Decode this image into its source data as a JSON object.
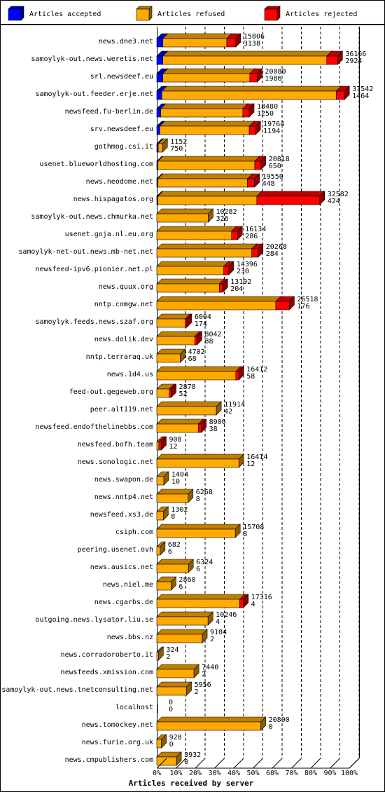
{
  "colors": {
    "accepted": "#0000ff",
    "refused": "#ffaa00",
    "rejected": "#ff0000",
    "background": "#ffffff",
    "grid": "#000000"
  },
  "chart_data": {
    "type": "bar",
    "orientation": "horizontal",
    "stacked": true,
    "three_d": true,
    "grid": true,
    "legend_position": "top",
    "xlabel": "Articles received by server",
    "ylabel": "",
    "title": "",
    "xlim": [
      0,
      100
    ],
    "x_unit": "%",
    "x_ticks": [
      "0%",
      "10%",
      "20%",
      "30%",
      "40%",
      "50%",
      "60%",
      "70%",
      "80%",
      "90%",
      "100%"
    ],
    "x_max_articles": 38500,
    "series": [
      {
        "name": "Articles accepted",
        "color": "#0000ff",
        "key": "accepted"
      },
      {
        "name": "Articles refused",
        "color": "#ffaa00",
        "key": "refused"
      },
      {
        "name": "Articles rejected",
        "color": "#ff0000",
        "key": "rejected"
      }
    ],
    "rows": [
      {
        "label": "news.dne3.net",
        "total": 15806,
        "rejected_count": 3138,
        "accepted": 1200,
        "refused": 12800,
        "rejected": 1806
      },
      {
        "label": "samoylyk-out.news.weretis.net",
        "total": 36166,
        "rejected_count": 2924,
        "accepted": 1200,
        "refused": 32800,
        "rejected": 2166
      },
      {
        "label": "srl.newsdeef.eu",
        "total": 20080,
        "rejected_count": 1986,
        "accepted": 1200,
        "refused": 17400,
        "rejected": 1480
      },
      {
        "label": "samoylyk-out.feeder.erje.net",
        "total": 37542,
        "rejected_count": 1464,
        "accepted": 1000,
        "refused": 34900,
        "rejected": 1642
      },
      {
        "label": "newsfeed.fu-berlin.de",
        "total": 18480,
        "rejected_count": 1250,
        "accepted": 800,
        "refused": 16400,
        "rejected": 1280
      },
      {
        "label": "srv.newsdeef.eu",
        "total": 19764,
        "rejected_count": 1194,
        "accepted": 600,
        "refused": 17900,
        "rejected": 1264
      },
      {
        "label": "gothmog.csi.it",
        "total": 1152,
        "rejected_count": 750,
        "accepted": 300,
        "refused": 852,
        "rejected": 0
      },
      {
        "label": "usenet.blueworldhosting.com",
        "total": 20818,
        "rejected_count": 650,
        "accepted": 200,
        "refused": 19400,
        "rejected": 1218
      },
      {
        "label": "news.neodome.net",
        "total": 19550,
        "rejected_count": 448,
        "accepted": 200,
        "refused": 17950,
        "rejected": 1400
      },
      {
        "label": "news.hispagatos.org",
        "total": 32582,
        "rejected_count": 424,
        "accepted": 200,
        "refused": 19800,
        "rejected": 12582
      },
      {
        "label": "samoylyk-out.news.chmurka.net",
        "total": 10282,
        "rejected_count": 326,
        "accepted": 0,
        "refused": 10282,
        "rejected": 0
      },
      {
        "label": "usenet.goja.nl.eu.org",
        "total": 16134,
        "rejected_count": 286,
        "accepted": 0,
        "refused": 14950,
        "rejected": 1184
      },
      {
        "label": "samoylyk-net-out.news.mb-net.net",
        "total": 20268,
        "rejected_count": 284,
        "accepted": 0,
        "refused": 19000,
        "rejected": 1268
      },
      {
        "label": "newsfeed-ipv6.pionier.net.pl",
        "total": 14396,
        "rejected_count": 230,
        "accepted": 0,
        "refused": 13400,
        "rejected": 996
      },
      {
        "label": "news.quux.org",
        "total": 13192,
        "rejected_count": 204,
        "accepted": 0,
        "refused": 12500,
        "rejected": 692
      },
      {
        "label": "nntp.comgw.net",
        "total": 26518,
        "rejected_count": 176,
        "accepted": 0,
        "refused": 23800,
        "rejected": 2718
      },
      {
        "label": "samoylyk.feeds.news.szaf.org",
        "total": 6004,
        "rejected_count": 174,
        "accepted": 0,
        "refused": 5700,
        "rejected": 304
      },
      {
        "label": "news.dolik.dev",
        "total": 8042,
        "rejected_count": 88,
        "accepted": 0,
        "refused": 7600,
        "rejected": 442
      },
      {
        "label": "nntp.terraraq.uk",
        "total": 4702,
        "rejected_count": 68,
        "accepted": 0,
        "refused": 4702,
        "rejected": 0
      },
      {
        "label": "news.1d4.us",
        "total": 16412,
        "rejected_count": 58,
        "accepted": 0,
        "refused": 15800,
        "rejected": 612
      },
      {
        "label": "feed-out.gegeweb.org",
        "total": 2878,
        "rejected_count": 52,
        "accepted": 0,
        "refused": 2500,
        "rejected": 378
      },
      {
        "label": "peer.alt119.net",
        "total": 11914,
        "rejected_count": 42,
        "accepted": 0,
        "refused": 11914,
        "rejected": 0
      },
      {
        "label": "newsfeed.endofthelinebbs.com",
        "total": 8906,
        "rejected_count": 38,
        "accepted": 0,
        "refused": 8300,
        "rejected": 606
      },
      {
        "label": "newsfeed.bofh.team",
        "total": 908,
        "rejected_count": 12,
        "accepted": 0,
        "refused": 400,
        "rejected": 508
      },
      {
        "label": "news.sonologic.net",
        "total": 16414,
        "rejected_count": 12,
        "accepted": 0,
        "refused": 16414,
        "rejected": 0
      },
      {
        "label": "news.swapon.de",
        "total": 1404,
        "rejected_count": 10,
        "accepted": 0,
        "refused": 1404,
        "rejected": 0
      },
      {
        "label": "news.nntp4.net",
        "total": 6268,
        "rejected_count": 8,
        "accepted": 0,
        "refused": 6268,
        "rejected": 0
      },
      {
        "label": "newsfeed.xs3.de",
        "total": 1302,
        "rejected_count": 8,
        "accepted": 0,
        "refused": 1302,
        "rejected": 0
      },
      {
        "label": "csiph.com",
        "total": 15708,
        "rejected_count": 8,
        "accepted": 0,
        "refused": 15708,
        "rejected": 0
      },
      {
        "label": "peering.usenet.ovh",
        "total": 682,
        "rejected_count": 6,
        "accepted": 0,
        "refused": 682,
        "rejected": 0
      },
      {
        "label": "news.ausics.net",
        "total": 6324,
        "rejected_count": 6,
        "accepted": 0,
        "refused": 6324,
        "rejected": 0
      },
      {
        "label": "news.niel.me",
        "total": 2860,
        "rejected_count": 6,
        "accepted": 0,
        "refused": 2860,
        "rejected": 0
      },
      {
        "label": "news.cgarbs.de",
        "total": 17316,
        "rejected_count": 4,
        "accepted": 0,
        "refused": 16600,
        "rejected": 716
      },
      {
        "label": "outgoing.news.lysator.liu.se",
        "total": 10246,
        "rejected_count": 4,
        "accepted": 0,
        "refused": 10246,
        "rejected": 0
      },
      {
        "label": "news.bbs.nz",
        "total": 9104,
        "rejected_count": 2,
        "accepted": 0,
        "refused": 9104,
        "rejected": 0
      },
      {
        "label": "news.corradoroberto.it",
        "total": 324,
        "rejected_count": 2,
        "accepted": 0,
        "refused": 324,
        "rejected": 0
      },
      {
        "label": "newsfeeds.xmission.com",
        "total": 7440,
        "rejected_count": 2,
        "accepted": 0,
        "refused": 7440,
        "rejected": 0
      },
      {
        "label": "samoylyk-out.news.tnetconsulting.net",
        "total": 5956,
        "rejected_count": 2,
        "accepted": 0,
        "refused": 5956,
        "rejected": 0
      },
      {
        "label": "localhost",
        "total": 0,
        "rejected_count": 0,
        "accepted": 0,
        "refused": 0,
        "rejected": 0
      },
      {
        "label": "news.tomockey.net",
        "total": 20800,
        "rejected_count": 0,
        "accepted": 0,
        "refused": 20800,
        "rejected": 0
      },
      {
        "label": "news.furie.org.uk",
        "total": 928,
        "rejected_count": 0,
        "accepted": 0,
        "refused": 928,
        "rejected": 0
      },
      {
        "label": "news.cmpublishers.com",
        "total": 3932,
        "rejected_count": 0,
        "accepted": 0,
        "refused": 3932,
        "rejected": 0
      }
    ]
  }
}
